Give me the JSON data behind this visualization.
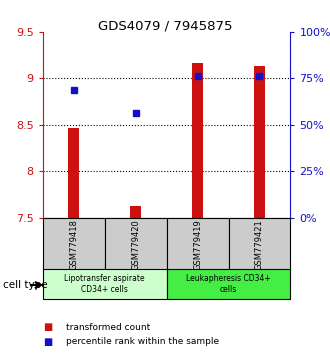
{
  "title": "GDS4079 / 7945875",
  "samples": [
    "GSM779418",
    "GSM779420",
    "GSM779419",
    "GSM779421"
  ],
  "bar_values": [
    8.47,
    7.63,
    9.17,
    9.13
  ],
  "dot_values": [
    8.87,
    8.63,
    9.02,
    9.02
  ],
  "ylim": [
    7.5,
    9.5
  ],
  "yticks_left": [
    7.5,
    8.0,
    8.5,
    9.0,
    9.5
  ],
  "yticks_right_pct": [
    0,
    25,
    50,
    75,
    100
  ],
  "bar_bottom": 7.5,
  "bar_color": "#cc1111",
  "dot_color": "#1111cc",
  "group0_label": "Lipotransfer aspirate\nCD34+ cells",
  "group0_color": "#ccffcc",
  "group1_label": "Leukapheresis CD34+\ncells",
  "group1_color": "#44ee44",
  "cell_bg": "#cccccc",
  "legend_items": [
    {
      "color": "#cc1111",
      "label": "transformed count"
    },
    {
      "color": "#1111cc",
      "label": "percentile rank within the sample"
    }
  ],
  "bar_width": 0.18
}
